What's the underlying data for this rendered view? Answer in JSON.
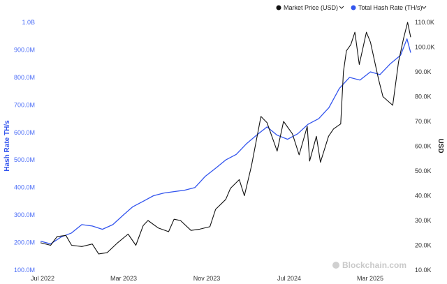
{
  "chart_data": {
    "type": "line",
    "title": "",
    "ylabel_left": "Hash Rate TH/s",
    "ylabel_right": "USD",
    "legend_position": "top-right",
    "grid": false,
    "watermark": "Blockchain.com",
    "x_ticks": [
      "Jul 2022",
      "Mar 2023",
      "Nov 2023",
      "Jul 2024",
      "Mar 2025"
    ],
    "x_range": [
      "2022-06-01",
      "2025-05-31"
    ],
    "y_left": {
      "range": [
        100000000,
        1000000000
      ],
      "ticks": [
        {
          "value": 100000000,
          "label": "100.0M"
        },
        {
          "value": 200000000,
          "label": "200.0M"
        },
        {
          "value": 300000000,
          "label": "300.0M"
        },
        {
          "value": 400000000,
          "label": "400.0M"
        },
        {
          "value": 500000000,
          "label": "500.0M"
        },
        {
          "value": 600000000,
          "label": "600.0M"
        },
        {
          "value": 700000000,
          "label": "700.0M"
        },
        {
          "value": 800000000,
          "label": "800.0M"
        },
        {
          "value": 900000000,
          "label": "900.0M"
        },
        {
          "value": 1000000000,
          "label": "1.0B"
        }
      ]
    },
    "y_right": {
      "range": [
        10000,
        110000
      ],
      "ticks": [
        {
          "value": 10000,
          "label": "10.0K"
        },
        {
          "value": 20000,
          "label": "20.0K"
        },
        {
          "value": 30000,
          "label": "30.0K"
        },
        {
          "value": 40000,
          "label": "40.0K"
        },
        {
          "value": 50000,
          "label": "50.0K"
        },
        {
          "value": 60000,
          "label": "60.0K"
        },
        {
          "value": 70000,
          "label": "70.0K"
        },
        {
          "value": 80000,
          "label": "80.0K"
        },
        {
          "value": 90000,
          "label": "90.0K"
        },
        {
          "value": 100000,
          "label": "100.0K"
        },
        {
          "value": 110000,
          "label": "110.0K"
        }
      ]
    },
    "series": [
      {
        "name": "Market Price (USD)",
        "axis": "right",
        "color": "#111111",
        "marker": "circle",
        "points": [
          [
            "2022-06-01",
            21000
          ],
          [
            "2022-07-01",
            20000
          ],
          [
            "2022-07-20",
            23500
          ],
          [
            "2022-08-15",
            24000
          ],
          [
            "2022-09-01",
            20000
          ],
          [
            "2022-10-01",
            19500
          ],
          [
            "2022-11-01",
            20500
          ],
          [
            "2022-11-20",
            16500
          ],
          [
            "2022-12-15",
            17000
          ],
          [
            "2023-01-15",
            21000
          ],
          [
            "2023-02-15",
            24500
          ],
          [
            "2023-03-10",
            20000
          ],
          [
            "2023-04-01",
            28000
          ],
          [
            "2023-04-15",
            30000
          ],
          [
            "2023-05-15",
            27000
          ],
          [
            "2023-06-15",
            25500
          ],
          [
            "2023-07-01",
            30500
          ],
          [
            "2023-07-20",
            30000
          ],
          [
            "2023-08-20",
            26000
          ],
          [
            "2023-09-15",
            26500
          ],
          [
            "2023-10-15",
            27500
          ],
          [
            "2023-11-01",
            34500
          ],
          [
            "2023-12-01",
            38500
          ],
          [
            "2023-12-15",
            43000
          ],
          [
            "2024-01-10",
            46500
          ],
          [
            "2024-01-25",
            40000
          ],
          [
            "2024-02-15",
            52000
          ],
          [
            "2024-03-14",
            72000
          ],
          [
            "2024-04-01",
            69500
          ],
          [
            "2024-05-01",
            58000
          ],
          [
            "2024-05-20",
            70000
          ],
          [
            "2024-06-15",
            65000
          ],
          [
            "2024-07-05",
            56500
          ],
          [
            "2024-07-29",
            68000
          ],
          [
            "2024-08-05",
            54000
          ],
          [
            "2024-08-25",
            64000
          ],
          [
            "2024-09-06",
            53500
          ],
          [
            "2024-09-30",
            64000
          ],
          [
            "2024-10-15",
            67000
          ],
          [
            "2024-11-05",
            69000
          ],
          [
            "2024-11-13",
            90000
          ],
          [
            "2024-11-22",
            98500
          ],
          [
            "2024-12-05",
            101000
          ],
          [
            "2024-12-17",
            106000
          ],
          [
            "2024-12-30",
            93000
          ],
          [
            "2025-01-20",
            106000
          ],
          [
            "2025-02-01",
            102000
          ],
          [
            "2025-02-25",
            87000
          ],
          [
            "2025-03-10",
            80000
          ],
          [
            "2025-04-08",
            76500
          ],
          [
            "2025-04-25",
            94000
          ],
          [
            "2025-05-10",
            103500
          ],
          [
            "2025-05-22",
            110000
          ],
          [
            "2025-05-31",
            104000
          ]
        ]
      },
      {
        "name": "Total Hash Rate (TH/s)",
        "axis": "left",
        "color": "#3355ee",
        "marker": "circle",
        "points": [
          [
            "2022-06-01",
            205000000
          ],
          [
            "2022-07-01",
            195000000
          ],
          [
            "2022-08-01",
            220000000
          ],
          [
            "2022-09-01",
            235000000
          ],
          [
            "2022-10-01",
            265000000
          ],
          [
            "2022-11-01",
            260000000
          ],
          [
            "2022-12-01",
            248000000
          ],
          [
            "2023-01-01",
            265000000
          ],
          [
            "2023-02-01",
            300000000
          ],
          [
            "2023-03-01",
            330000000
          ],
          [
            "2023-04-01",
            350000000
          ],
          [
            "2023-05-01",
            370000000
          ],
          [
            "2023-06-01",
            380000000
          ],
          [
            "2023-07-01",
            385000000
          ],
          [
            "2023-08-01",
            390000000
          ],
          [
            "2023-09-01",
            400000000
          ],
          [
            "2023-10-01",
            440000000
          ],
          [
            "2023-11-01",
            470000000
          ],
          [
            "2023-12-01",
            500000000
          ],
          [
            "2024-01-01",
            520000000
          ],
          [
            "2024-02-01",
            560000000
          ],
          [
            "2024-03-01",
            590000000
          ],
          [
            "2024-04-01",
            620000000
          ],
          [
            "2024-05-01",
            590000000
          ],
          [
            "2024-06-01",
            575000000
          ],
          [
            "2024-07-01",
            595000000
          ],
          [
            "2024-08-01",
            630000000
          ],
          [
            "2024-09-01",
            650000000
          ],
          [
            "2024-10-01",
            690000000
          ],
          [
            "2024-11-01",
            760000000
          ],
          [
            "2024-12-01",
            800000000
          ],
          [
            "2025-01-01",
            790000000
          ],
          [
            "2025-02-01",
            820000000
          ],
          [
            "2025-03-01",
            810000000
          ],
          [
            "2025-04-01",
            850000000
          ],
          [
            "2025-05-01",
            880000000
          ],
          [
            "2025-05-20",
            940000000
          ],
          [
            "2025-05-31",
            890000000
          ]
        ]
      }
    ]
  }
}
